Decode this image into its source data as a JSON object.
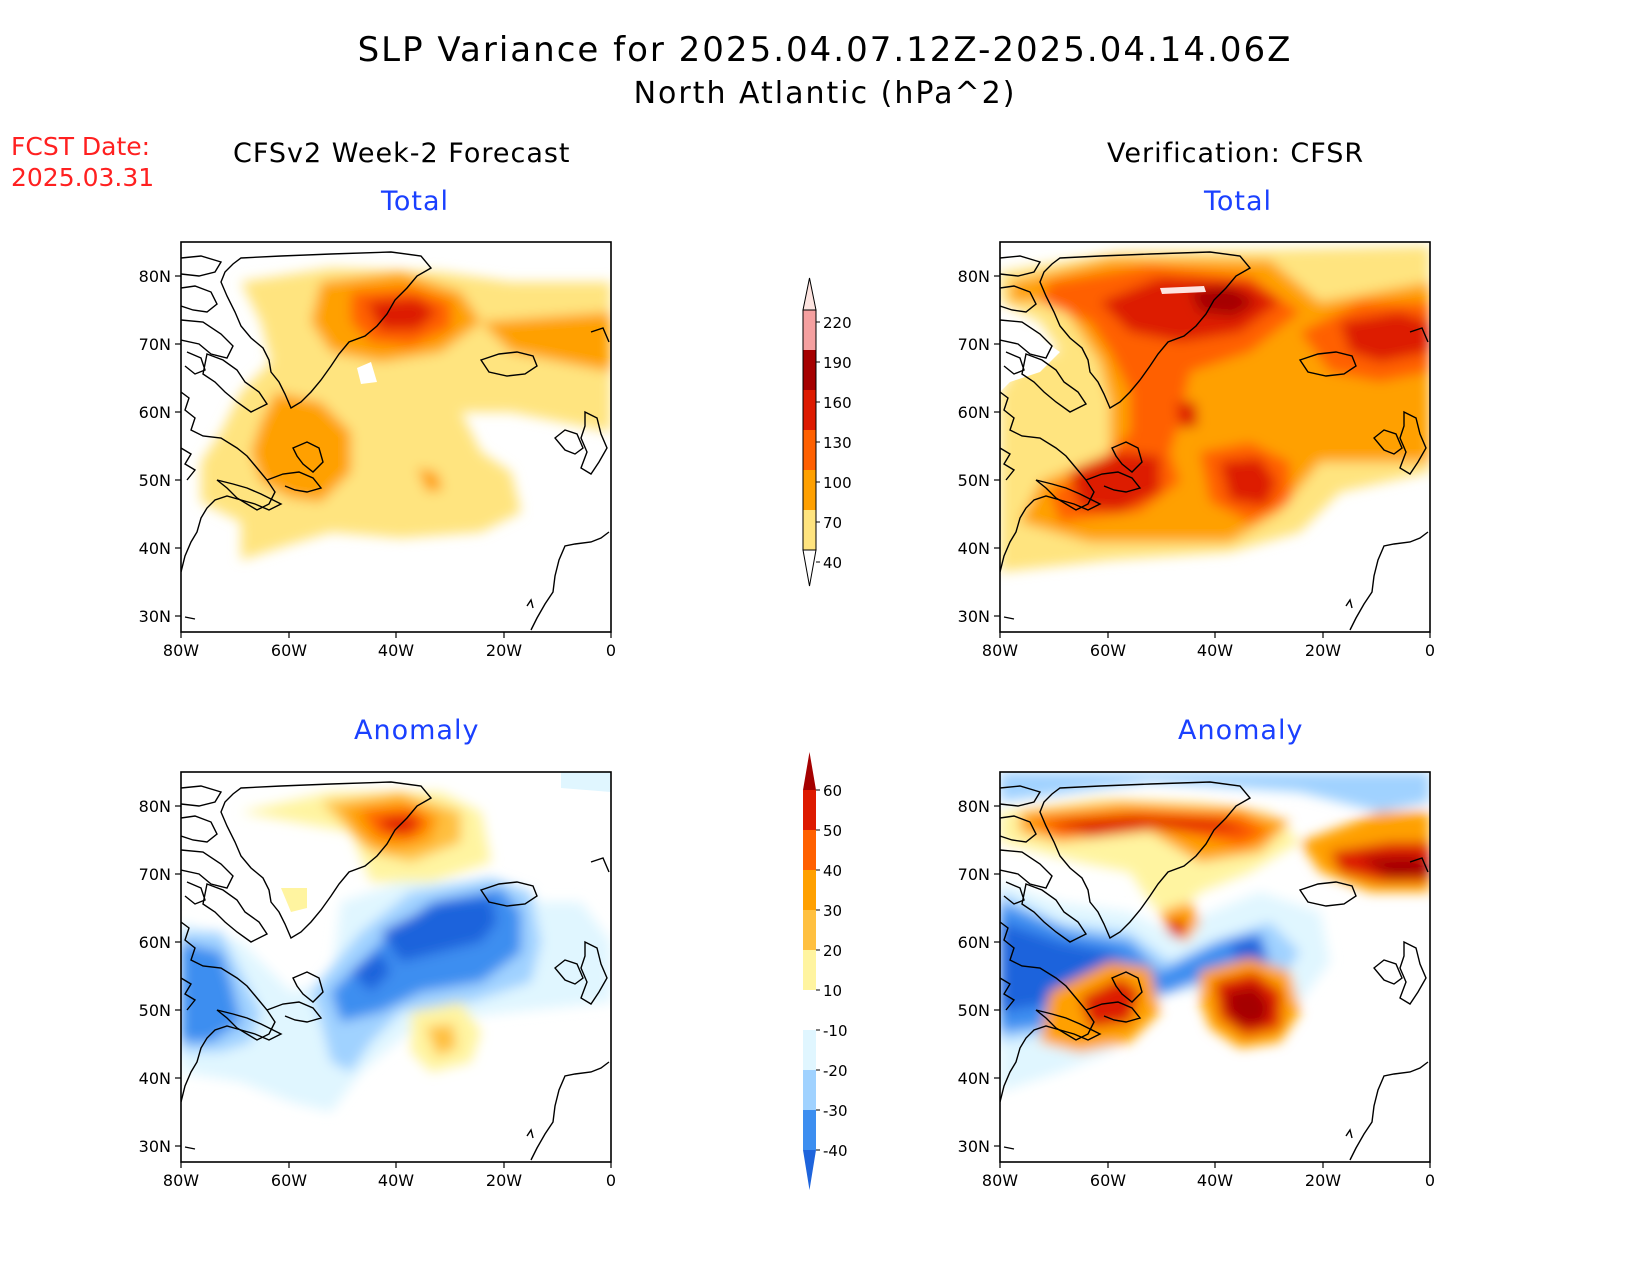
{
  "header": {
    "title_line1": "SLP Variance for 2025.04.07.12Z-2025.04.14.06Z",
    "title_line2": "North Atlantic (hPa^2)",
    "fcst_label": "FCST Date:",
    "fcst_date": "2025.03.31"
  },
  "columns": {
    "left": "CFSv2 Week-2 Forecast",
    "right": "Verification: CFSR"
  },
  "panels": {
    "forecast_total": "Total",
    "verif_total": "Total",
    "forecast_anomaly": "Anomaly",
    "verif_anomaly": "Anomaly"
  },
  "axes": {
    "lat_labels": [
      "80N",
      "70N",
      "60N",
      "50N",
      "40N",
      "30N"
    ],
    "lon_labels": [
      "80W",
      "60W",
      "40W",
      "20W",
      "0"
    ]
  },
  "legends": {
    "total": {
      "labels": [
        "220",
        "190",
        "160",
        "130",
        "100",
        "70",
        "40"
      ],
      "colors": [
        "#fde4e0",
        "#f5a0a0",
        "#a50000",
        "#dd1a00",
        "#ff6000",
        "#ffa000",
        "#ffe47f"
      ]
    },
    "anomaly": {
      "labels": [
        "60",
        "50",
        "40",
        "30",
        "20",
        "10",
        "-10",
        "-20",
        "-30",
        "-40"
      ],
      "colors": [
        "#a50000",
        "#dd1a00",
        "#ff6000",
        "#ffa000",
        "#ffc040",
        "#fff4a0",
        "#ffffff",
        "#e0f6ff",
        "#a0d2ff",
        "#3c8ef0",
        "#1e64dc"
      ]
    }
  }
}
